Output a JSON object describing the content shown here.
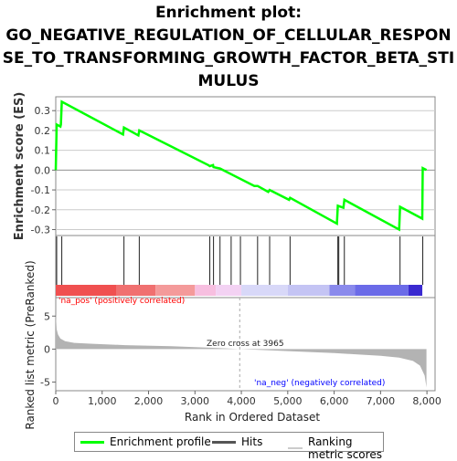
{
  "title_lines": [
    "Enrichment plot:",
    "GO_NEGATIVE_REGULATION_OF_CELLULAR_RESPON",
    "SE_TO_TRANSFORMING_GROWTH_FACTOR_BETA_STI",
    "MULUS"
  ],
  "legend": {
    "items": [
      {
        "label": "Enrichment profile",
        "color": "#00ff00"
      },
      {
        "label": "Hits",
        "color": "#555555"
      },
      {
        "label": "Ranking metric scores",
        "color": "#cccccc"
      }
    ]
  },
  "annotations": {
    "zero_cross": "Zero cross at 3965",
    "pos_label": "'na_pos' (positively correlated)",
    "neg_label": "'na_neg' (negatively correlated)"
  },
  "colors": {
    "profile": "#00ff00",
    "pos_text": "#ff0000",
    "neg_text": "#0000ff",
    "metric_fill": "#b3b3b3",
    "grid": "#cccccc"
  },
  "chart_data": [
    {
      "type": "line",
      "name": "enrichment_profile",
      "ylabel": "Enrichment score (ES)",
      "xlim": [
        0,
        8175
      ],
      "ylim": [
        -0.33,
        0.37
      ],
      "yticks": [
        -0.3,
        -0.2,
        -0.1,
        0.0,
        0.1,
        0.2,
        0.3
      ],
      "grid": true,
      "points": [
        [
          0,
          0.0
        ],
        [
          20,
          0.23
        ],
        [
          100,
          0.22
        ],
        [
          110,
          0.23
        ],
        [
          130,
          0.345
        ],
        [
          1450,
          0.18
        ],
        [
          1470,
          0.215
        ],
        [
          1780,
          0.175
        ],
        [
          1800,
          0.2
        ],
        [
          3290,
          0.025
        ],
        [
          3320,
          0.02
        ],
        [
          3390,
          0.025
        ],
        [
          3400,
          0.015
        ],
        [
          3540,
          0.008
        ],
        [
          4280,
          -0.08
        ],
        [
          4350,
          -0.08
        ],
        [
          4580,
          -0.11
        ],
        [
          4610,
          -0.1
        ],
        [
          5030,
          -0.15
        ],
        [
          5050,
          -0.14
        ],
        [
          6060,
          -0.27
        ],
        [
          6080,
          -0.18
        ],
        [
          6200,
          -0.19
        ],
        [
          6220,
          -0.15
        ],
        [
          7400,
          -0.3
        ],
        [
          7420,
          -0.185
        ],
        [
          7900,
          -0.245
        ],
        [
          7910,
          0.01
        ],
        [
          7990,
          0.0
        ]
      ]
    },
    {
      "type": "scatter",
      "name": "hits",
      "x": [
        20,
        130,
        1470,
        1800,
        3320,
        3400,
        3540,
        3780,
        3980,
        4350,
        4610,
        5050,
        6080,
        6100,
        6220,
        7420,
        7910
      ]
    },
    {
      "type": "area",
      "name": "ranked_list_metric",
      "ylabel": "Ranked list metric (PreRanked)",
      "xlabel": "Rank in Ordered Dataset",
      "xlim": [
        0,
        8175
      ],
      "ylim": [
        -6.3,
        7.8
      ],
      "yticks": [
        -5,
        0,
        5
      ],
      "xticks": [
        0,
        1000,
        2000,
        3000,
        4000,
        5000,
        6000,
        7000,
        8000
      ],
      "zero_cross": 3965,
      "points": [
        [
          0,
          5.5
        ],
        [
          20,
          3.0
        ],
        [
          50,
          2.2
        ],
        [
          100,
          1.6
        ],
        [
          200,
          1.2
        ],
        [
          400,
          0.95
        ],
        [
          800,
          0.8
        ],
        [
          1500,
          0.6
        ],
        [
          2500,
          0.45
        ],
        [
          3000,
          0.3
        ],
        [
          3500,
          0.15
        ],
        [
          3965,
          0.0
        ],
        [
          4500,
          -0.15
        ],
        [
          5000,
          -0.3
        ],
        [
          6000,
          -0.6
        ],
        [
          6500,
          -0.8
        ],
        [
          7000,
          -1.0
        ],
        [
          7400,
          -1.3
        ],
        [
          7700,
          -1.8
        ],
        [
          7850,
          -2.5
        ],
        [
          7950,
          -4.0
        ],
        [
          7990,
          -5.8
        ]
      ]
    },
    {
      "type": "heatmap",
      "name": "rank_color_bar",
      "segments": [
        {
          "x0": 0,
          "x1": 1300,
          "color": "#f05050"
        },
        {
          "x0": 1300,
          "x1": 2150,
          "color": "#f07070"
        },
        {
          "x0": 2150,
          "x1": 3000,
          "color": "#f49a9a"
        },
        {
          "x0": 3000,
          "x1": 3450,
          "color": "#f7bfe0"
        },
        {
          "x0": 3450,
          "x1": 4000,
          "color": "#f3d2f3"
        },
        {
          "x0": 4000,
          "x1": 5000,
          "color": "#d8d8f8"
        },
        {
          "x0": 5000,
          "x1": 5900,
          "color": "#c4c4f4"
        },
        {
          "x0": 5900,
          "x1": 6450,
          "color": "#8a8aec"
        },
        {
          "x0": 6450,
          "x1": 7600,
          "color": "#6b6be8"
        },
        {
          "x0": 7600,
          "x1": 7900,
          "color": "#3a2ad0"
        }
      ]
    }
  ]
}
